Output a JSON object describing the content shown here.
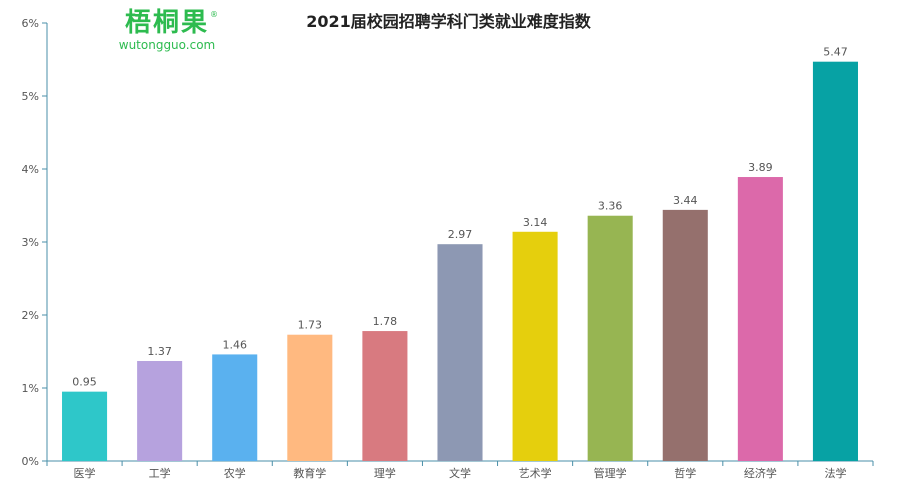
{
  "logo": {
    "name": "梧桐果",
    "domain": "wutongguo.com",
    "reg": "®"
  },
  "chart_data": {
    "type": "bar",
    "title": "2021届校园招聘学科门类就业难度指数",
    "xlabel": "",
    "ylabel": "",
    "categories": [
      "医学",
      "工学",
      "农学",
      "教育学",
      "理学",
      "文学",
      "艺术学",
      "管理学",
      "哲学",
      "经济学",
      "法学"
    ],
    "values": [
      0.95,
      1.37,
      1.46,
      1.73,
      1.78,
      2.97,
      3.14,
      3.36,
      3.44,
      3.89,
      5.47
    ],
    "colors": [
      "#2ec7c9",
      "#b6a2de",
      "#5ab1ef",
      "#ffb980",
      "#d87a80",
      "#8d98b3",
      "#e5cf0d",
      "#97b552",
      "#95706d",
      "#dc69aa",
      "#07a2a4"
    ],
    "ylim": [
      0,
      6
    ],
    "yticks": [
      "0%",
      "1%",
      "2%",
      "3%",
      "4%",
      "5%",
      "6%"
    ],
    "grid": false,
    "legend": "none"
  }
}
